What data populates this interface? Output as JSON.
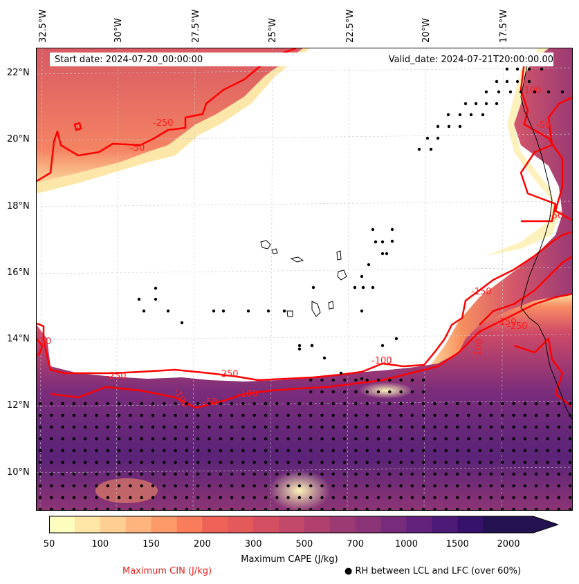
{
  "axes": {
    "lon_labels": [
      "32.5°W",
      "30°W",
      "27.5°W",
      "25°W",
      "22.5°W",
      "20°W",
      "17.5°W"
    ],
    "lat_labels": [
      "22°N",
      "20°N",
      "18°N",
      "16°N",
      "14°N",
      "12°N",
      "10°N"
    ]
  },
  "header": {
    "start_date": "Start date: 2024-07-20_00:00:00",
    "valid_date": "Valid_date: 2024-07-21T20:00:00.00"
  },
  "contour_labels": [
    "-250",
    "-50",
    "-250",
    "-100",
    "-50",
    "-250",
    "-100",
    "-250",
    "-50",
    "-100",
    "-150",
    "-100",
    "-50",
    "-100",
    "-50",
    "-100",
    "-150"
  ],
  "colorbar": {
    "ticks": [
      "50",
      "100",
      "150",
      "200",
      "300",
      "500",
      "700",
      "1000",
      "1500",
      "2000"
    ],
    "colors": [
      "#fcfdbf",
      "#fee6a6",
      "#fecf92",
      "#feb47c",
      "#fd9a6a",
      "#f97c5d",
      "#ee6258",
      "#e45a5a",
      "#d54f62",
      "#c3496a",
      "#b0416f",
      "#9c3b73",
      "#8a3477",
      "#762c7b",
      "#63237c",
      "#4d1a78",
      "#37126c",
      "#231151"
    ],
    "label": "Maximum CAPE (J/kg)"
  },
  "legend": {
    "cin": "Maximum CIN (J/kg)",
    "rh": "● RH between LCL and LFC (over 60%)"
  },
  "colors": {
    "cin_contour": "#ff0000",
    "dots": "#000000"
  }
}
